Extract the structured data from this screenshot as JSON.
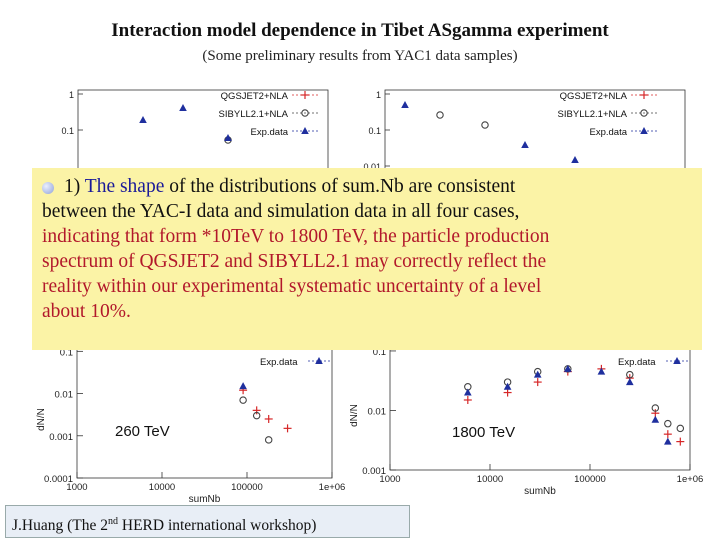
{
  "title": "Interaction model dependence in Tibet ASgamma experiment",
  "subtitle": "(Some preliminary results from YAC1 data samples)",
  "overlay": {
    "bullet_number": "1)",
    "highlight": "The shape",
    "line1_rest": "of the distributions of sum.Nb are consistent",
    "line2": "between the YAC-I data and simulation data in all four cases,",
    "lines_red": [
      "indicating that form *10TeV to 1800 TeV, the particle production",
      "spectrum of QGSJET2 and SIBYLL2.1 may correctly reflect the",
      "reality within our experimental systematic uncertainty of a level",
      "about 10%."
    ]
  },
  "energy_labels": [
    "260 TeV",
    "1800 TeV"
  ],
  "footer": {
    "prefix": "J.Huang (The 2",
    "sup": "nd",
    "suffix": "HERD international workshop)"
  },
  "colors": {
    "qgsjet": "#d62728",
    "sibyll": "#444444",
    "exp": "#1f2f9e",
    "overlay_bg": "#fbf3a6",
    "footer_bg": "#e8eef6"
  },
  "chart_data": [
    {
      "type": "scatter",
      "panel": "top-left",
      "ylog": true,
      "ytick_labels": [
        "1",
        "0.1"
      ],
      "legend_position": "top-right",
      "series": [
        {
          "name": "QGSJET2+NLA",
          "marker": "plus",
          "x": [],
          "y": []
        },
        {
          "name": "SIBYLL2.1+NLA",
          "marker": "circle",
          "x": [],
          "y": []
        },
        {
          "name": "Exp.data",
          "marker": "triangle",
          "x": [],
          "y": []
        }
      ]
    },
    {
      "type": "scatter",
      "panel": "top-right",
      "ylog": true,
      "ytick_labels": [
        "1",
        "0.1",
        "0.01"
      ],
      "legend_position": "top-right",
      "series": [
        {
          "name": "QGSJET2+NLA",
          "marker": "plus",
          "x": [],
          "y": []
        },
        {
          "name": "SIBYLL2.1+NLA",
          "marker": "circle",
          "x": [],
          "y": []
        },
        {
          "name": "Exp.data",
          "marker": "triangle",
          "x": [],
          "y": []
        }
      ]
    },
    {
      "type": "scatter",
      "panel": "bottom-left",
      "xlog": true,
      "ylog": true,
      "xlim": [
        1000,
        1000000
      ],
      "xtick_labels": [
        "1000",
        "10000",
        "100000",
        "1e+06"
      ],
      "ytick_labels": [
        "0.1",
        "0.01",
        "0.001",
        "0.0001"
      ],
      "xlabel": "sumNb",
      "ylabel": "dN/N",
      "legend_position": "top-right",
      "legend_visible": [
        "Exp.data"
      ],
      "series": [
        {
          "name": "QGSJET2+NLA",
          "marker": "plus",
          "x": [
            11000,
            22000,
            45000,
            90000,
            130000,
            180000,
            300000
          ],
          "y": [
            0.07,
            0.08,
            0.05,
            0.012,
            0.004,
            0.0025,
            0.0015
          ]
        },
        {
          "name": "SIBYLL2.1+NLA",
          "marker": "circle",
          "x": [
            3000,
            11000,
            22000,
            45000,
            90000,
            130000,
            180000
          ],
          "y": [
            0.09,
            0.065,
            0.08,
            0.05,
            0.007,
            0.003,
            0.0008
          ]
        },
        {
          "name": "Exp.data",
          "marker": "triangle",
          "x": [
            3000,
            11000,
            22000,
            45000,
            90000
          ],
          "y": [
            0.085,
            0.06,
            0.075,
            0.055,
            0.015
          ]
        }
      ]
    },
    {
      "type": "scatter",
      "panel": "bottom-right",
      "xlog": true,
      "ylog": true,
      "xlim": [
        1000,
        1000000
      ],
      "xtick_labels": [
        "1000",
        "10000",
        "100000",
        "1e+06"
      ],
      "ytick_labels": [
        "0.1",
        "0.01",
        "0.001"
      ],
      "xlabel": "sumNb",
      "ylabel": "dN/N",
      "legend_position": "top-right",
      "legend_visible": [
        "Exp.data"
      ],
      "series": [
        {
          "name": "QGSJET2+NLA",
          "marker": "plus",
          "x": [
            6000,
            15000,
            30000,
            60000,
            130000,
            250000,
            450000,
            600000,
            800000
          ],
          "y": [
            0.015,
            0.02,
            0.03,
            0.045,
            0.05,
            0.035,
            0.009,
            0.004,
            0.003
          ]
        },
        {
          "name": "SIBYLL2.1+NLA",
          "marker": "circle",
          "x": [
            6000,
            15000,
            30000,
            60000,
            130000,
            250000,
            450000,
            600000,
            800000
          ],
          "y": [
            0.025,
            0.03,
            0.045,
            0.05,
            0.06,
            0.04,
            0.011,
            0.006,
            0.005
          ]
        },
        {
          "name": "Exp.data",
          "marker": "triangle",
          "x": [
            6000,
            15000,
            30000,
            60000,
            130000,
            250000,
            450000,
            600000
          ],
          "y": [
            0.02,
            0.025,
            0.04,
            0.05,
            0.045,
            0.03,
            0.007,
            0.003
          ]
        }
      ]
    }
  ]
}
